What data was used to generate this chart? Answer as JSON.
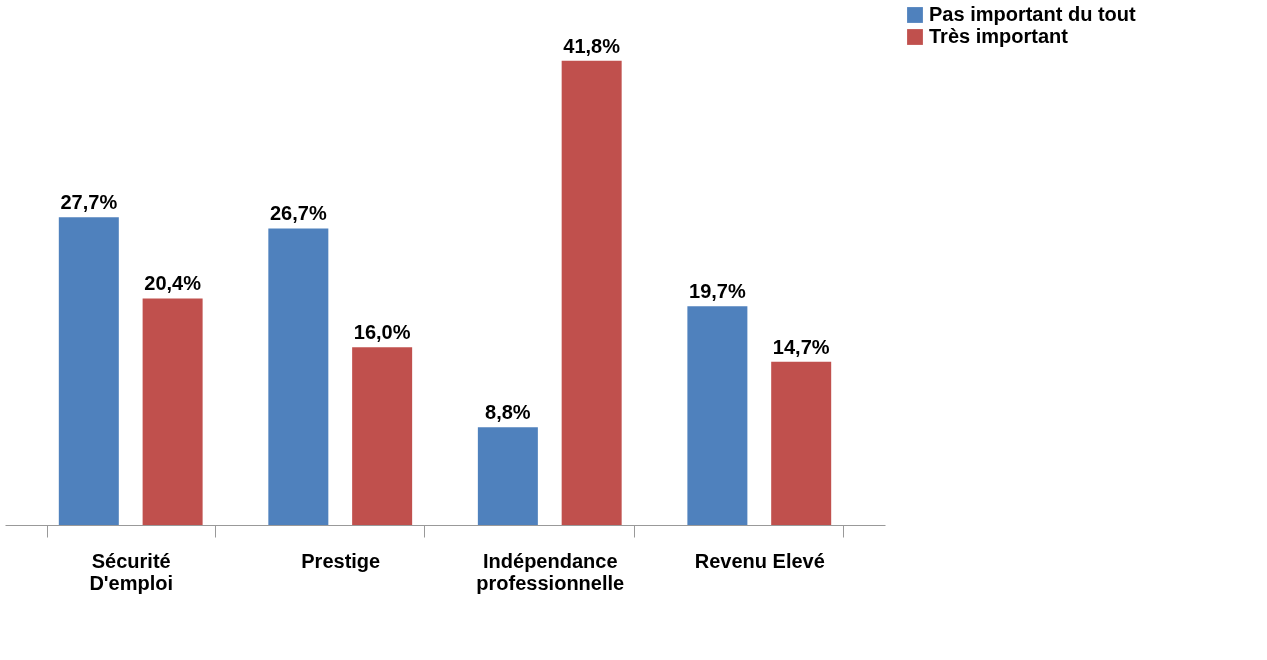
{
  "chart_data": {
    "type": "bar",
    "categories": [
      "Sécurité D'emploi",
      "Prestige",
      "Indépendance professionnelle",
      "Revenu Elevé"
    ],
    "series": [
      {
        "name": "Pas important du tout",
        "color": "#4f81bd",
        "values": [
          27.7,
          26.7,
          8.8,
          19.7
        ],
        "value_labels": [
          "27,7%",
          "26,7%",
          "8,8%",
          "19,7%"
        ]
      },
      {
        "name": "Très important",
        "color": "#c0504d",
        "values": [
          20.4,
          16.0,
          41.8,
          14.7
        ],
        "value_labels": [
          "20,4%",
          "16,0%",
          "41,8%",
          "14,7%"
        ]
      }
    ],
    "legend": "right",
    "grid": false
  }
}
